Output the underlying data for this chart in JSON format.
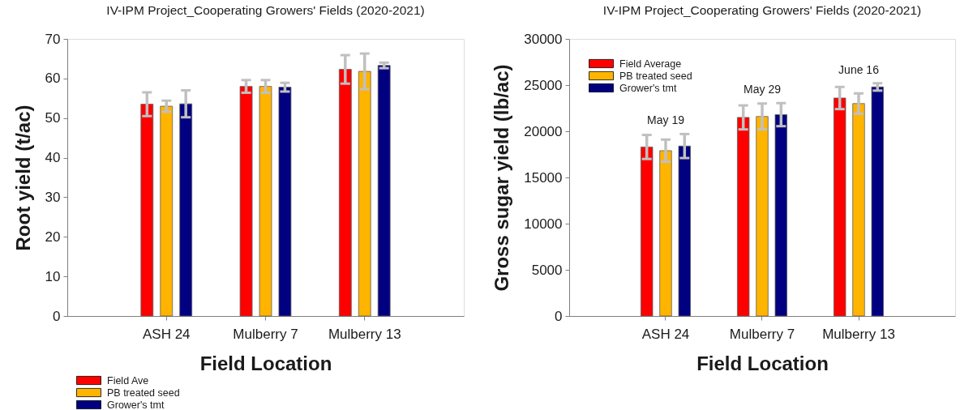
{
  "chart_data": [
    {
      "type": "bar",
      "title": "IV-IPM Project_Cooperating Growers' Fields (2020-2021)",
      "xlabel": "Field Location",
      "ylabel": "Root yield (t/ac)",
      "categories": [
        "ASH 24",
        "Mulberry 7",
        "Mulberry 13"
      ],
      "series": [
        {
          "name": "Field Ave",
          "color": "#ff0000",
          "values": [
            53.5,
            58.0,
            62.3
          ],
          "errors": [
            3.0,
            1.6,
            3.6
          ]
        },
        {
          "name": "PB treated seed",
          "color": "#ffb400",
          "values": [
            53.0,
            58.0,
            61.8
          ],
          "errors": [
            1.4,
            1.6,
            4.5
          ]
        },
        {
          "name": "Grower's tmt",
          "color": "#000080",
          "values": [
            53.6,
            57.8,
            63.3
          ],
          "errors": [
            3.4,
            1.1,
            0.7
          ]
        }
      ],
      "ylim": [
        0,
        70
      ],
      "yticks": [
        0,
        10,
        20,
        30,
        40,
        50,
        60,
        70
      ],
      "grid": false,
      "legend": "bottom left"
    },
    {
      "type": "bar",
      "title": "IV-IPM Project_Cooperating Growers' Fields (2020-2021)",
      "xlabel": "Field Location",
      "ylabel": "Gross sugar yield (lb/ac)",
      "categories": [
        "ASH 24",
        "Mulberry 7",
        "Mulberry 13"
      ],
      "series": [
        {
          "name": "Field Average",
          "color": "#ff0000",
          "values": [
            18300,
            21500,
            23600
          ],
          "errors": [
            1300,
            1300,
            1200
          ]
        },
        {
          "name": "PB treated seed",
          "color": "#ffb400",
          "values": [
            17900,
            21600,
            23000
          ],
          "errors": [
            1200,
            1400,
            1100
          ]
        },
        {
          "name": "Grower's tmt",
          "color": "#000080",
          "values": [
            18400,
            21800,
            24800
          ],
          "errors": [
            1300,
            1250,
            400
          ]
        }
      ],
      "ylim": [
        0,
        30000
      ],
      "yticks": [
        0,
        5000,
        10000,
        15000,
        20000,
        25000,
        30000
      ],
      "grid": false,
      "legend": "top left",
      "annotations": [
        "May 19",
        "May 29",
        "June 16"
      ]
    }
  ]
}
